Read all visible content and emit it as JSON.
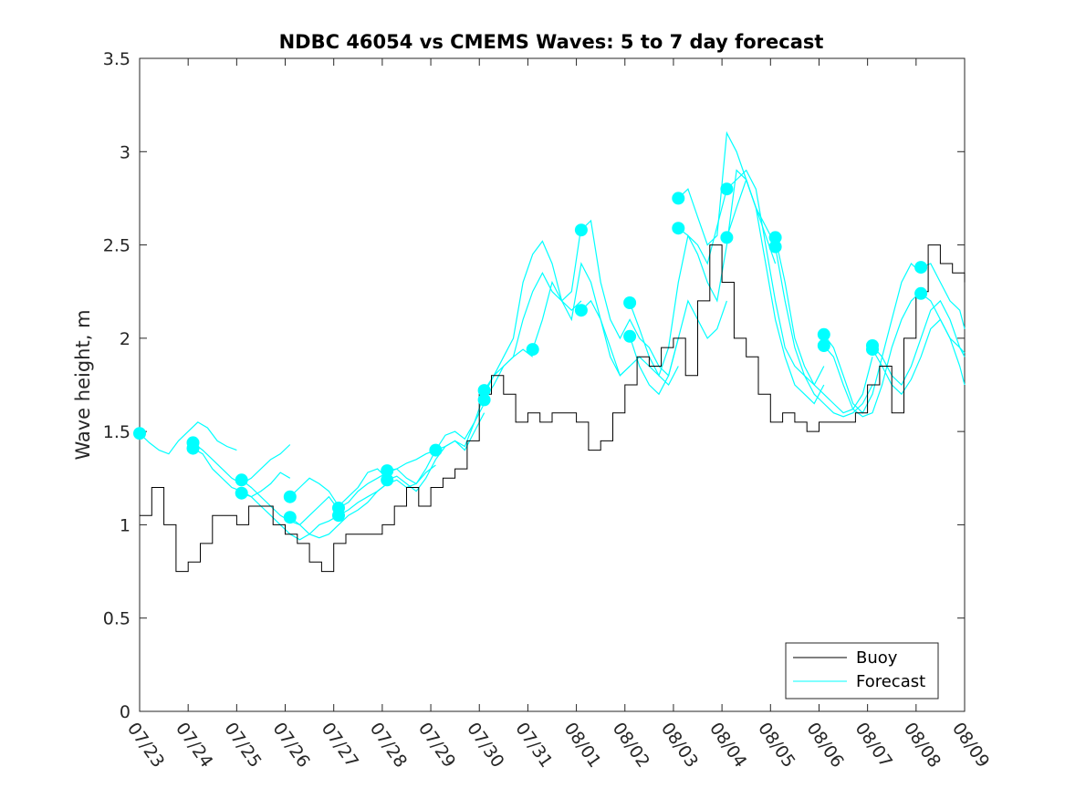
{
  "chart_data": {
    "type": "line",
    "title": "NDBC 46054 vs CMEMS Waves: 5 to 7 day forecast",
    "xlabel": "",
    "ylabel": "Wave height, m",
    "xlim": [
      "07/23",
      "08/09"
    ],
    "ylim": [
      0,
      3.5
    ],
    "yticks": [
      0,
      0.5,
      1,
      1.5,
      2,
      2.5,
      3,
      3.5
    ],
    "ytick_labels": [
      "0",
      "0.5",
      "1",
      "1.5",
      "2",
      "2.5",
      "3",
      "3.5"
    ],
    "xtick_labels": [
      "07/23",
      "07/24",
      "07/25",
      "07/26",
      "07/27",
      "07/28",
      "07/29",
      "07/30",
      "07/31",
      "08/01",
      "08/02",
      "08/03",
      "08/04",
      "08/05",
      "08/06",
      "08/07",
      "08/08",
      "08/09"
    ],
    "grid": false,
    "legend": {
      "placement": "bottom-right",
      "entries": [
        "Buoy",
        "Forecast"
      ]
    },
    "colors": {
      "buoy": "#000000",
      "forecast": "#00ffff",
      "axis": "#262626"
    },
    "series": [
      {
        "name": "Buoy",
        "x": [
          0.0,
          0.25,
          0.5,
          0.75,
          1.0,
          1.25,
          1.5,
          1.75,
          2.0,
          2.25,
          2.5,
          2.75,
          3.0,
          3.25,
          3.5,
          3.75,
          4.0,
          4.25,
          4.5,
          4.75,
          5.0,
          5.25,
          5.5,
          5.75,
          6.0,
          6.25,
          6.5,
          6.75,
          7.0,
          7.25,
          7.5,
          7.75,
          8.0,
          8.25,
          8.5,
          8.75,
          9.0,
          9.25,
          9.5,
          9.75,
          10.0,
          10.25,
          10.5,
          10.75,
          11.0,
          11.25,
          11.5,
          11.75,
          12.0,
          12.25,
          12.5,
          12.75,
          13.0,
          13.25,
          13.5,
          13.75,
          14.0,
          14.25,
          14.5,
          14.75,
          15.0,
          15.25,
          15.5,
          15.75,
          16.0,
          16.25,
          16.5,
          16.75,
          17.0
        ],
        "values": [
          1.05,
          1.2,
          1.0,
          0.75,
          0.8,
          0.9,
          1.05,
          1.05,
          1.0,
          1.1,
          1.1,
          1.0,
          0.95,
          0.9,
          0.8,
          0.75,
          0.9,
          0.95,
          0.95,
          0.95,
          1.0,
          1.1,
          1.2,
          1.1,
          1.2,
          1.25,
          1.3,
          1.45,
          1.7,
          1.8,
          1.7,
          1.55,
          1.6,
          1.55,
          1.6,
          1.6,
          1.55,
          1.4,
          1.45,
          1.6,
          1.75,
          1.9,
          1.85,
          1.95,
          2.0,
          1.8,
          2.2,
          2.5,
          2.3,
          2.0,
          1.9,
          1.7,
          1.55,
          1.6,
          1.55,
          1.5,
          1.55,
          1.55,
          1.55,
          1.6,
          1.75,
          1.85,
          1.6,
          2.0,
          2.25,
          2.5,
          2.4,
          2.35,
          2.3
        ]
      },
      {
        "name": "Forecast",
        "runs": [
          {
            "x": [
              0.0,
              0.2,
              0.4,
              0.6,
              0.8,
              1.0,
              1.2,
              1.4,
              1.6,
              1.8,
              2.0
            ],
            "values": [
              1.49,
              1.44,
              1.4,
              1.38,
              1.45,
              1.5,
              1.55,
              1.52,
              1.45,
              1.42,
              1.4
            ]
          },
          {
            "x": [
              1.1,
              1.3,
              1.5,
              1.7,
              1.9,
              2.1,
              2.3,
              2.5,
              2.7,
              2.9,
              3.1
            ],
            "values": [
              1.44,
              1.4,
              1.35,
              1.3,
              1.25,
              1.22,
              1.25,
              1.3,
              1.35,
              1.38,
              1.43
            ]
          },
          {
            "x": [
              1.1,
              1.3,
              1.5,
              1.7,
              1.9,
              2.1,
              2.3,
              2.5,
              2.7,
              2.9,
              3.1
            ],
            "values": [
              1.41,
              1.38,
              1.3,
              1.25,
              1.2,
              1.18,
              1.15,
              1.18,
              1.22,
              1.28,
              1.25
            ]
          },
          {
            "x": [
              2.1,
              2.3,
              2.5,
              2.7,
              2.9,
              3.1,
              3.3,
              3.5,
              3.7,
              3.9,
              4.1
            ],
            "values": [
              1.24,
              1.2,
              1.15,
              1.1,
              1.05,
              1.02,
              1.0,
              1.05,
              1.1,
              1.15,
              1.08
            ]
          },
          {
            "x": [
              2.1,
              2.3,
              2.5,
              2.7,
              2.9,
              3.1,
              3.3,
              3.5,
              3.7,
              3.9,
              4.1
            ],
            "values": [
              1.17,
              1.15,
              1.1,
              1.05,
              1.0,
              0.95,
              0.92,
              0.95,
              1.0,
              1.02,
              1.05
            ]
          },
          {
            "x": [
              3.1,
              3.3,
              3.5,
              3.7,
              3.9,
              4.1,
              4.3,
              4.5,
              4.7,
              4.9,
              5.1
            ],
            "values": [
              1.15,
              1.2,
              1.25,
              1.22,
              1.18,
              1.1,
              1.15,
              1.2,
              1.28,
              1.3,
              1.25
            ]
          },
          {
            "x": [
              3.1,
              3.3,
              3.5,
              3.7,
              3.9,
              4.1,
              4.3,
              4.5,
              4.7,
              4.9,
              5.1
            ],
            "values": [
              1.04,
              1.0,
              0.95,
              0.93,
              0.95,
              1.0,
              1.05,
              1.08,
              1.12,
              1.18,
              1.22
            ]
          },
          {
            "x": [
              4.1,
              4.3,
              4.5,
              4.7,
              4.9,
              5.1,
              5.3,
              5.5,
              5.7,
              5.9,
              6.1
            ],
            "values": [
              1.09,
              1.12,
              1.18,
              1.22,
              1.25,
              1.28,
              1.3,
              1.33,
              1.35,
              1.38,
              1.4
            ]
          },
          {
            "x": [
              4.1,
              4.3,
              4.5,
              4.7,
              4.9,
              5.1,
              5.3,
              5.5,
              5.7,
              5.9,
              6.1
            ],
            "values": [
              1.05,
              1.08,
              1.12,
              1.15,
              1.18,
              1.22,
              1.24,
              1.2,
              1.22,
              1.28,
              1.32
            ]
          },
          {
            "x": [
              5.1,
              5.3,
              5.5,
              5.7,
              5.9,
              6.1,
              6.3,
              6.5,
              6.7,
              6.9,
              7.1
            ],
            "values": [
              1.29,
              1.3,
              1.25,
              1.22,
              1.3,
              1.4,
              1.48,
              1.5,
              1.46,
              1.55,
              1.65
            ]
          },
          {
            "x": [
              5.1,
              5.3,
              5.5,
              5.7,
              5.9,
              6.1,
              6.3,
              6.5,
              6.7,
              6.9,
              7.1
            ],
            "values": [
              1.24,
              1.26,
              1.22,
              1.18,
              1.25,
              1.35,
              1.42,
              1.45,
              1.4,
              1.5,
              1.6
            ]
          },
          {
            "x": [
              6.1,
              6.3,
              6.5,
              6.7,
              6.9,
              7.1,
              7.3,
              7.5,
              7.7,
              7.9,
              8.1
            ],
            "values": [
              1.4,
              1.42,
              1.45,
              1.42,
              1.55,
              1.7,
              1.8,
              1.85,
              1.9,
              1.94,
              1.9
            ]
          },
          {
            "x": [
              7.1,
              7.3,
              7.5,
              7.7,
              7.9,
              8.1,
              8.3,
              8.5,
              8.7,
              8.9,
              9.1
            ],
            "values": [
              1.72,
              1.8,
              1.9,
              2.0,
              2.3,
              2.45,
              2.52,
              2.4,
              2.2,
              2.25,
              2.6
            ]
          },
          {
            "x": [
              7.1,
              7.3,
              7.5,
              7.7,
              7.9,
              8.1,
              8.3,
              8.5,
              8.7,
              8.9,
              9.1
            ],
            "values": [
              1.67,
              1.75,
              1.85,
              1.9,
              2.1,
              2.25,
              2.35,
              2.25,
              2.2,
              2.15,
              2.2
            ]
          },
          {
            "x": [
              8.1,
              8.3,
              8.5,
              8.7,
              8.9,
              9.1,
              9.3,
              9.5,
              9.7,
              9.9,
              10.1
            ],
            "values": [
              1.94,
              2.1,
              2.3,
              2.2,
              2.1,
              2.4,
              2.3,
              2.1,
              1.95,
              1.8,
              1.85
            ]
          },
          {
            "x": [
              9.1,
              9.3,
              9.5,
              9.7,
              9.9,
              10.1,
              10.3,
              10.5,
              10.7,
              10.9,
              11.1
            ],
            "values": [
              2.58,
              2.63,
              2.3,
              2.1,
              2.0,
              2.1,
              2.0,
              1.95,
              1.85,
              1.8,
              2.0
            ]
          },
          {
            "x": [
              9.1,
              9.3,
              9.5,
              9.7,
              9.9,
              10.1,
              10.3,
              10.5,
              10.7,
              10.9,
              11.1
            ],
            "values": [
              2.15,
              2.2,
              2.1,
              1.9,
              1.8,
              1.85,
              1.9,
              1.85,
              1.8,
              1.75,
              1.85
            ]
          },
          {
            "x": [
              10.1,
              10.3,
              10.5,
              10.7,
              10.9,
              11.1,
              11.3,
              11.5,
              11.7,
              11.9,
              12.1
            ],
            "values": [
              2.19,
              2.05,
              1.9,
              1.8,
              1.95,
              2.3,
              2.55,
              2.5,
              2.4,
              2.6,
              2.8
            ]
          },
          {
            "x": [
              10.1,
              10.3,
              10.5,
              10.7,
              10.9,
              11.1,
              11.3,
              11.5,
              11.7,
              11.9,
              12.1
            ],
            "values": [
              2.01,
              1.85,
              1.75,
              1.7,
              1.8,
              2.0,
              2.2,
              2.1,
              2.0,
              2.05,
              2.2
            ]
          },
          {
            "x": [
              11.1,
              11.3,
              11.5,
              11.7,
              11.9,
              12.1,
              12.3,
              12.5,
              12.7,
              12.9,
              13.1
            ],
            "values": [
              2.75,
              2.8,
              2.65,
              2.5,
              2.55,
              3.1,
              3.0,
              2.85,
              2.7,
              2.6,
              2.5
            ]
          },
          {
            "x": [
              11.1,
              11.3,
              11.5,
              11.7,
              11.9,
              12.1,
              12.3,
              12.5,
              12.7,
              12.9,
              13.1
            ],
            "values": [
              2.59,
              2.55,
              2.45,
              2.3,
              2.2,
              2.5,
              2.9,
              2.85,
              2.7,
              2.55,
              2.4
            ]
          },
          {
            "x": [
              12.1,
              12.3,
              12.5,
              12.7,
              12.9,
              13.1,
              13.3,
              13.5,
              13.7,
              13.9,
              14.1
            ],
            "values": [
              2.8,
              2.85,
              2.9,
              2.8,
              2.5,
              2.2,
              1.95,
              1.85,
              1.8,
              1.75,
              1.85
            ]
          },
          {
            "x": [
              12.1,
              12.3,
              12.5,
              12.7,
              12.9,
              13.1,
              13.3,
              13.5,
              13.7,
              13.9,
              14.1
            ],
            "values": [
              2.54,
              2.7,
              2.85,
              2.7,
              2.4,
              2.1,
              1.9,
              1.75,
              1.7,
              1.65,
              1.75
            ]
          },
          {
            "x": [
              13.1,
              13.3,
              13.5,
              13.7,
              13.9,
              14.1,
              14.3,
              14.5,
              14.7,
              14.9,
              15.1
            ],
            "values": [
              2.54,
              2.3,
              2.0,
              1.85,
              1.75,
              1.7,
              1.65,
              1.6,
              1.62,
              1.7,
              1.9
            ]
          },
          {
            "x": [
              13.1,
              13.3,
              13.5,
              13.7,
              13.9,
              14.1,
              14.3,
              14.5,
              14.7,
              14.9,
              15.1
            ],
            "values": [
              2.49,
              2.2,
              1.95,
              1.8,
              1.7,
              1.65,
              1.6,
              1.58,
              1.6,
              1.65,
              1.75
            ]
          },
          {
            "x": [
              14.1,
              14.3,
              14.5,
              14.7,
              14.9,
              15.1,
              15.3,
              15.5,
              15.7,
              15.9,
              16.1
            ],
            "values": [
              2.02,
              1.95,
              1.8,
              1.65,
              1.6,
              1.7,
              1.9,
              2.1,
              2.3,
              2.4,
              2.35
            ]
          },
          {
            "x": [
              14.1,
              14.3,
              14.5,
              14.7,
              14.9,
              15.1,
              15.3,
              15.5,
              15.7,
              15.9,
              16.1
            ],
            "values": [
              1.96,
              1.9,
              1.75,
              1.62,
              1.58,
              1.6,
              1.75,
              1.95,
              2.1,
              2.2,
              2.25
            ]
          },
          {
            "x": [
              15.1,
              15.3,
              15.5,
              15.7,
              15.9,
              16.1,
              16.3,
              16.5,
              16.7,
              16.9,
              17.0
            ],
            "values": [
              1.96,
              1.9,
              1.8,
              1.75,
              1.85,
              2.0,
              2.15,
              2.2,
              2.1,
              1.95,
              1.9
            ]
          },
          {
            "x": [
              15.1,
              15.3,
              15.5,
              15.7,
              15.9,
              16.1,
              16.3,
              16.5,
              16.7,
              16.9,
              17.0
            ],
            "values": [
              1.94,
              1.85,
              1.75,
              1.7,
              1.78,
              1.9,
              2.05,
              2.1,
              2.0,
              1.85,
              1.75
            ]
          },
          {
            "x": [
              16.1,
              16.3,
              16.5,
              16.7,
              16.9,
              17.0
            ],
            "values": [
              2.38,
              2.4,
              2.3,
              2.2,
              2.15,
              2.05
            ]
          },
          {
            "x": [
              16.1,
              16.3,
              16.5,
              16.7,
              16.9,
              17.0
            ],
            "values": [
              2.24,
              2.2,
              2.1,
              2.0,
              1.95,
              1.92
            ]
          }
        ]
      }
    ]
  }
}
